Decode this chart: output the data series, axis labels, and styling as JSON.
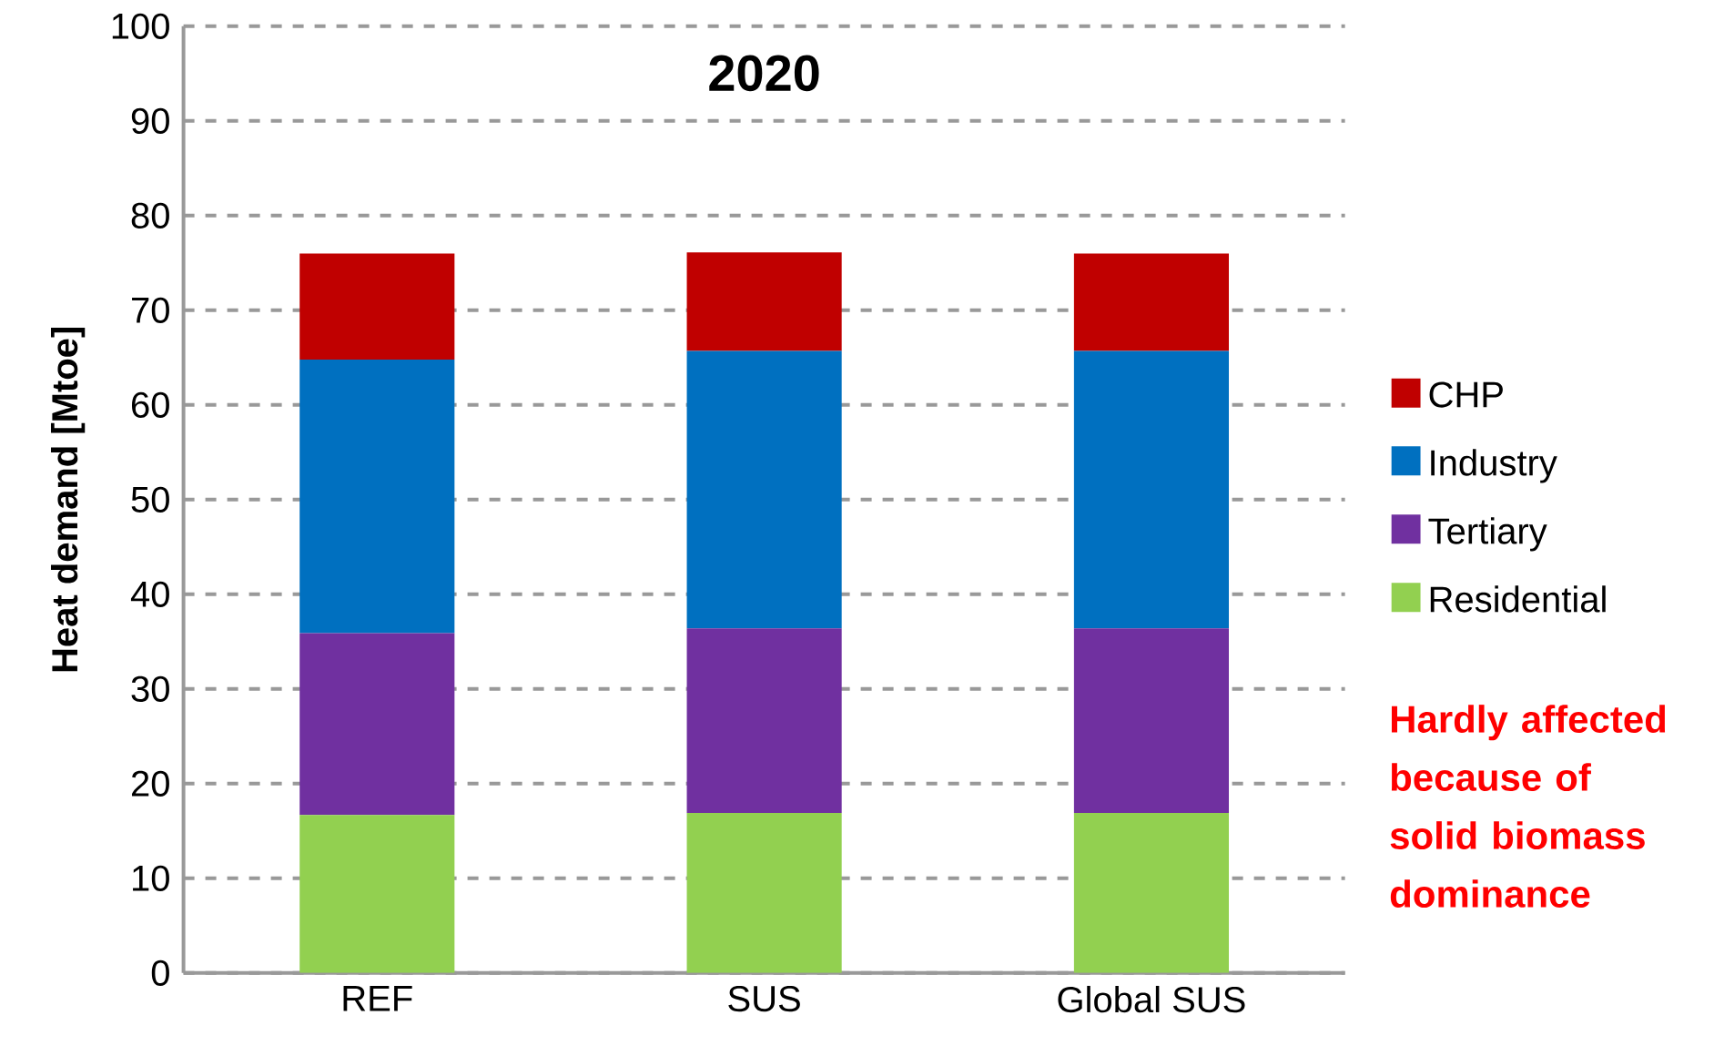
{
  "chart_data": {
    "type": "bar",
    "stacked": true,
    "title": "2020",
    "ylabel": "Heat demand [Mtoe]",
    "categories": [
      "REF",
      "SUS",
      "Global SUS"
    ],
    "series": [
      {
        "name": "Residential",
        "color": "#92d050",
        "values": [
          16.7,
          16.9,
          16.9
        ]
      },
      {
        "name": "Tertiary",
        "color": "#7030a0",
        "values": [
          19.2,
          19.5,
          19.5
        ]
      },
      {
        "name": "Industry",
        "color": "#0070c0",
        "values": [
          28.9,
          29.3,
          29.3
        ]
      },
      {
        "name": "CHP",
        "color": "#c00000",
        "values": [
          11.2,
          10.4,
          10.3
        ]
      }
    ],
    "ylim": [
      0,
      100
    ],
    "yticks": [
      0,
      10,
      20,
      30,
      40,
      50,
      60,
      70,
      80,
      90,
      100
    ],
    "grid": "y",
    "legend": "right",
    "annotations": [
      "Hardly affected because of solid biomass dominance"
    ]
  }
}
